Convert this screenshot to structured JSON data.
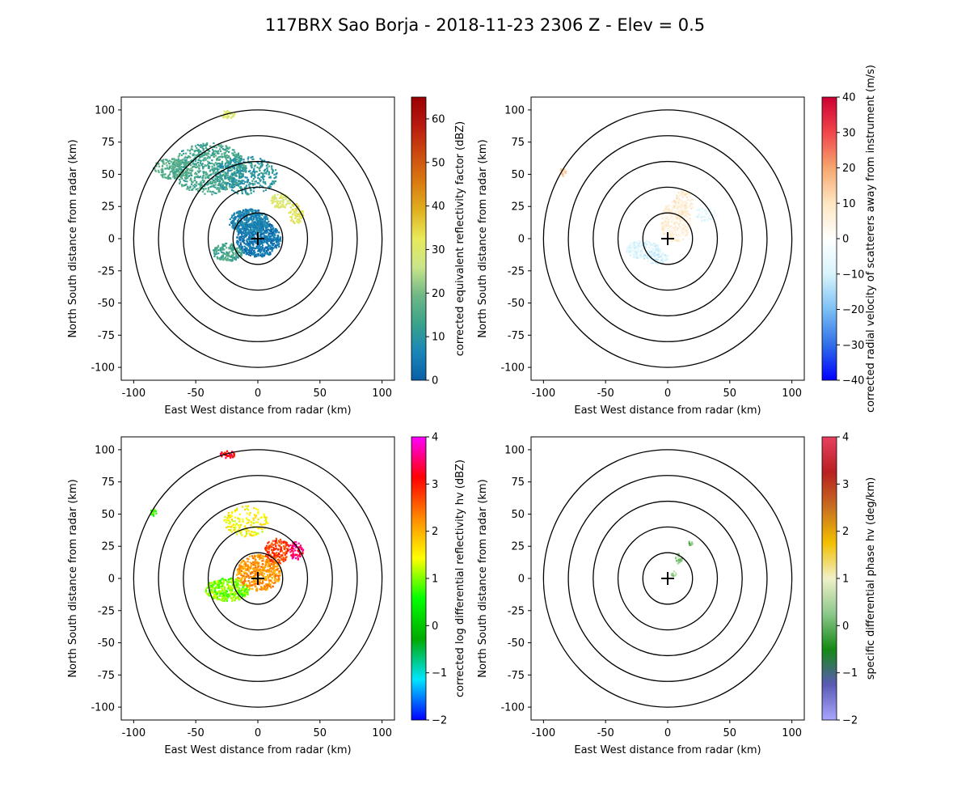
{
  "figure_title": "117BRX Sao Borja - 2018-11-23 2306 Z -  Elev = 0.5",
  "chart_data": [
    {
      "type": "heatmap",
      "title": "",
      "xlabel": "East West distance from radar (km)",
      "ylabel": "North South distance from radar (km)",
      "xlim": [
        -110,
        110
      ],
      "ylim": [
        -110,
        110
      ],
      "xticks": [
        -100,
        -50,
        0,
        50,
        100
      ],
      "yticks": [
        -100,
        -75,
        -50,
        -25,
        0,
        25,
        50,
        75,
        100
      ],
      "range_rings_km": [
        20,
        40,
        60,
        80,
        100
      ],
      "colorbar_label": "corrected equivalent reflectivity factor (dBZ)",
      "colorbar_range": [
        0,
        65
      ],
      "colorbar_ticks": [
        0,
        10,
        20,
        30,
        40,
        50,
        60
      ],
      "colorbar_stops": [
        "#0a5fa6",
        "#1a86b8",
        "#3aa38a",
        "#6fb886",
        "#c9e58a",
        "#e8ea5a",
        "#e0b020",
        "#d97a10",
        "#cc4a10",
        "#b81a0e",
        "#990000"
      ],
      "echo_regions": [
        {
          "x": 0,
          "y": 0,
          "rx": 18,
          "ry": 14,
          "value": 4,
          "density": 0.9
        },
        {
          "x": -8,
          "y": 14,
          "rx": 16,
          "ry": 10,
          "value": 6,
          "density": 0.85
        },
        {
          "x": -25,
          "y": -10,
          "rx": 12,
          "ry": 7,
          "value": 14,
          "density": 0.7
        },
        {
          "x": 18,
          "y": 30,
          "rx": 8,
          "ry": 6,
          "value": 30,
          "density": 0.6
        },
        {
          "x": 30,
          "y": 20,
          "rx": 6,
          "ry": 8,
          "value": 32,
          "density": 0.6
        },
        {
          "x": -40,
          "y": 55,
          "rx": 30,
          "ry": 20,
          "value": 14,
          "density": 0.45
        },
        {
          "x": -70,
          "y": 55,
          "rx": 15,
          "ry": 8,
          "value": 16,
          "density": 0.45
        },
        {
          "x": -10,
          "y": 50,
          "rx": 25,
          "ry": 15,
          "value": 10,
          "density": 0.35
        },
        {
          "x": -25,
          "y": 97,
          "rx": 6,
          "ry": 3,
          "value": 30,
          "density": 0.8
        }
      ]
    },
    {
      "type": "heatmap",
      "title": "",
      "xlabel": "East West distance from radar (km)",
      "ylabel": "North South distance from radar (km)",
      "xlim": [
        -110,
        110
      ],
      "ylim": [
        -110,
        110
      ],
      "xticks": [
        -100,
        -50,
        0,
        50,
        100
      ],
      "yticks": [
        -100,
        -75,
        -50,
        -25,
        0,
        25,
        50,
        75,
        100
      ],
      "range_rings_km": [
        20,
        40,
        60,
        80,
        100
      ],
      "colorbar_label": "corrected radial velocity of scatterers away from instrument (m/s)",
      "colorbar_range": [
        -40,
        40
      ],
      "colorbar_ticks": [
        -40,
        -30,
        -20,
        -10,
        0,
        10,
        20,
        30,
        40
      ],
      "colorbar_stops": [
        "#0000ff",
        "#2f6fe8",
        "#7cc0f4",
        "#d8f4fb",
        "#ffffff",
        "#fde6c2",
        "#f6a66e",
        "#f0464a",
        "#cc0033"
      ],
      "echo_regions": [
        {
          "x": -20,
          "y": -8,
          "rx": 14,
          "ry": 7,
          "value": -8,
          "density": 0.75
        },
        {
          "x": -10,
          "y": -14,
          "rx": 10,
          "ry": 5,
          "value": -10,
          "density": 0.6
        },
        {
          "x": 6,
          "y": 14,
          "rx": 12,
          "ry": 16,
          "value": 6,
          "density": 0.7
        },
        {
          "x": 12,
          "y": 28,
          "rx": 8,
          "ry": 10,
          "value": 8,
          "density": 0.45
        },
        {
          "x": 30,
          "y": 20,
          "rx": 8,
          "ry": 6,
          "value": -6,
          "density": 0.5
        },
        {
          "x": -85,
          "y": 52,
          "rx": 3,
          "ry": 3,
          "value": 14,
          "density": 0.6
        }
      ]
    },
    {
      "type": "heatmap",
      "title": "",
      "xlabel": "East West distance from radar (km)",
      "ylabel": "North South distance from radar (km)",
      "xlim": [
        -110,
        110
      ],
      "ylim": [
        -110,
        110
      ],
      "xticks": [
        -100,
        -50,
        0,
        50,
        100
      ],
      "yticks": [
        -100,
        -75,
        -50,
        -25,
        0,
        25,
        50,
        75,
        100
      ],
      "range_rings_km": [
        20,
        40,
        60,
        80,
        100
      ],
      "colorbar_label": "corrected log differential reflectivity hv (dBZ)",
      "colorbar_range": [
        -2,
        4
      ],
      "colorbar_ticks": [
        -2,
        -1,
        0,
        1,
        2,
        3,
        4
      ],
      "colorbar_stops": [
        "#0000ff",
        "#00e5ff",
        "#00aa00",
        "#00ff00",
        "#ffff00",
        "#ff8800",
        "#ff0000",
        "#ff00ff"
      ],
      "echo_regions": [
        {
          "x": -25,
          "y": -8,
          "rx": 18,
          "ry": 9,
          "value": 1.0,
          "density": 0.8
        },
        {
          "x": 0,
          "y": 5,
          "rx": 18,
          "ry": 14,
          "value": 2.2,
          "density": 0.65
        },
        {
          "x": 15,
          "y": 22,
          "rx": 10,
          "ry": 10,
          "value": 2.8,
          "density": 0.55
        },
        {
          "x": 30,
          "y": 22,
          "rx": 6,
          "ry": 7,
          "value": 3.5,
          "density": 0.6
        },
        {
          "x": -10,
          "y": 45,
          "rx": 18,
          "ry": 12,
          "value": 1.5,
          "density": 0.25
        },
        {
          "x": -25,
          "y": 97,
          "rx": 6,
          "ry": 3,
          "value": 3.2,
          "density": 0.8
        },
        {
          "x": -85,
          "y": 52,
          "rx": 3,
          "ry": 3,
          "value": 0.8,
          "density": 0.7
        }
      ]
    },
    {
      "type": "heatmap",
      "title": "",
      "xlabel": "East West distance from radar (km)",
      "ylabel": "North South distance from radar (km)",
      "xlim": [
        -110,
        110
      ],
      "ylim": [
        -110,
        110
      ],
      "xticks": [
        -100,
        -50,
        0,
        50,
        100
      ],
      "yticks": [
        -100,
        -75,
        -50,
        -25,
        0,
        25,
        50,
        75,
        100
      ],
      "range_rings_km": [
        20,
        40,
        60,
        80,
        100
      ],
      "colorbar_label": "specific differential phase hv (deg/km)",
      "colorbar_range": [
        -2,
        4
      ],
      "colorbar_ticks": [
        -2,
        -1,
        0,
        1,
        2,
        3,
        4
      ],
      "colorbar_stops": [
        "#a9a6ff",
        "#5a5ab4",
        "#148a14",
        "#8cc88c",
        "#f0f0c8",
        "#f2c000",
        "#c87020",
        "#b82020",
        "#e84060"
      ],
      "echo_regions": [
        {
          "x": 8,
          "y": 16,
          "rx": 3,
          "ry": 4,
          "value": 0.2,
          "density": 0.7
        },
        {
          "x": 18,
          "y": 28,
          "rx": 2,
          "ry": 2,
          "value": 0.0,
          "density": 0.6
        },
        {
          "x": 4,
          "y": 4,
          "rx": 3,
          "ry": 3,
          "value": 0.4,
          "density": 0.4
        }
      ]
    }
  ]
}
